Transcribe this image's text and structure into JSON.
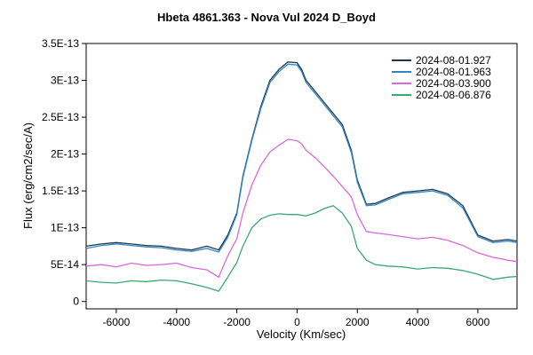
{
  "chart_data": {
    "type": "line",
    "title": "Hbeta 4861.363 - Nova Vul 2024   D_Boyd",
    "xlabel": "Velocity (Km/sec)",
    "ylabel": "Flux (erg/cm2/sec/A)",
    "xlim": [
      -7000,
      7300
    ],
    "ylim": [
      -1e-14,
      3.5e-13
    ],
    "x_ticks": [
      -6000,
      -4000,
      -2000,
      0,
      2000,
      4000,
      6000
    ],
    "x_tick_labels": [
      "-6000",
      "-4000",
      "-2000",
      "0",
      "2000",
      "4000",
      "6000"
    ],
    "y_ticks": [
      0,
      5e-14,
      1e-13,
      1.5e-13,
      2e-13,
      2.5e-13,
      3e-13,
      3.5e-13
    ],
    "y_tick_labels": [
      "0",
      "5E-14",
      "1E-13",
      "1.5E-13",
      "2E-13",
      "2.5E-13",
      "3E-13",
      "3.5E-13"
    ],
    "grid": false,
    "legend_position": "top-right",
    "series": [
      {
        "name": "2024-08-01.927",
        "color": "#1f3a4d",
        "x": [
          -7000,
          -6500,
          -6000,
          -5500,
          -5000,
          -4500,
          -4000,
          -3500,
          -3000,
          -2600,
          -2300,
          -2000,
          -1800,
          -1500,
          -1200,
          -900,
          -600,
          -300,
          0,
          150,
          300,
          600,
          900,
          1200,
          1500,
          1800,
          2000,
          2300,
          2600,
          3000,
          3500,
          4000,
          4500,
          5000,
          5500,
          6000,
          6500,
          7000,
          7300
        ],
        "y": [
          7.5e-14,
          7.8e-14,
          8e-14,
          7.8e-14,
          7.6e-14,
          7.5e-14,
          7.2e-14,
          7e-14,
          7.5e-14,
          7e-14,
          9e-14,
          1.2e-13,
          1.7e-13,
          2.2e-13,
          2.65e-13,
          3e-13,
          3.15e-13,
          3.25e-13,
          3.24e-13,
          3.15e-13,
          3e-13,
          2.85e-13,
          2.7e-13,
          2.55e-13,
          2.4e-13,
          2.05e-13,
          1.65e-13,
          1.32e-13,
          1.33e-13,
          1.4e-13,
          1.48e-13,
          1.5e-13,
          1.52e-13,
          1.46e-13,
          1.3e-13,
          9e-14,
          8.2e-14,
          8.4e-14,
          8.2e-14
        ]
      },
      {
        "name": "2024-08-01.963",
        "color": "#2f86c4",
        "x": [
          -7000,
          -6500,
          -6000,
          -5500,
          -5000,
          -4500,
          -4000,
          -3500,
          -3000,
          -2600,
          -2300,
          -2000,
          -1800,
          -1500,
          -1200,
          -900,
          -600,
          -300,
          0,
          150,
          300,
          600,
          900,
          1200,
          1500,
          1800,
          2000,
          2300,
          2600,
          3000,
          3500,
          4000,
          4500,
          5000,
          5500,
          6000,
          6500,
          7000,
          7300
        ],
        "y": [
          7.2e-14,
          7.6e-14,
          7.8e-14,
          7.6e-14,
          7.4e-14,
          7.3e-14,
          7e-14,
          6.8e-14,
          7.2e-14,
          6.7e-14,
          8.7e-14,
          1.18e-13,
          1.68e-13,
          2.18e-13,
          2.62e-13,
          2.97e-13,
          3.12e-13,
          3.22e-13,
          3.21e-13,
          3.12e-13,
          2.97e-13,
          2.82e-13,
          2.67e-13,
          2.52e-13,
          2.37e-13,
          2.02e-13,
          1.62e-13,
          1.3e-13,
          1.31e-13,
          1.38e-13,
          1.46e-13,
          1.48e-13,
          1.5e-13,
          1.44e-13,
          1.27e-13,
          8.8e-14,
          8e-14,
          8.2e-14,
          8e-14
        ]
      },
      {
        "name": "2024-08-03.900",
        "color": "#d96ad9",
        "x": [
          -7000,
          -6500,
          -6000,
          -5500,
          -5000,
          -4500,
          -4000,
          -3500,
          -3000,
          -2600,
          -2300,
          -2000,
          -1800,
          -1500,
          -1200,
          -900,
          -600,
          -300,
          0,
          150,
          300,
          600,
          900,
          1200,
          1500,
          1800,
          2000,
          2300,
          2600,
          3000,
          3500,
          4000,
          4500,
          5000,
          5500,
          6000,
          6500,
          7000,
          7300
        ],
        "y": [
          4.8e-14,
          5e-14,
          4.7e-14,
          5.2e-14,
          4.9e-14,
          5e-14,
          5.2e-14,
          4.6e-14,
          4.3e-14,
          3.3e-14,
          6.2e-14,
          8.5e-14,
          1.2e-13,
          1.58e-13,
          1.85e-13,
          2.03e-13,
          2.12e-13,
          2.2e-13,
          2.18e-13,
          2.14e-13,
          2.05e-13,
          1.95e-13,
          1.83e-13,
          1.7e-13,
          1.56e-13,
          1.42e-13,
          1.18e-13,
          9.5e-14,
          9.3e-14,
          9.1e-14,
          8.8e-14,
          8.5e-14,
          8.7e-14,
          8.3e-14,
          7.6e-14,
          6.6e-14,
          6e-14,
          5.6e-14,
          5.4e-14
        ]
      },
      {
        "name": "2024-08-06.876",
        "color": "#3aa870",
        "x": [
          -7000,
          -6500,
          -6000,
          -5500,
          -5000,
          -4500,
          -4000,
          -3500,
          -3000,
          -2600,
          -2300,
          -2000,
          -1800,
          -1500,
          -1200,
          -900,
          -600,
          -300,
          0,
          300,
          600,
          900,
          1200,
          1500,
          1800,
          2000,
          2300,
          2600,
          3000,
          3500,
          4000,
          4500,
          5000,
          5500,
          6000,
          6500,
          7000,
          7300
        ],
        "y": [
          2.8e-14,
          2.6e-14,
          2.5e-14,
          2.8e-14,
          2.7e-14,
          2.9e-14,
          2.8e-14,
          2.4e-14,
          1.9e-14,
          1.4e-14,
          3.3e-14,
          5.3e-14,
          7.5e-14,
          1e-13,
          1.12e-13,
          1.17e-13,
          1.19e-13,
          1.18e-13,
          1.18e-13,
          1.16e-13,
          1.2e-13,
          1.26e-13,
          1.3e-13,
          1.2e-13,
          1.02e-13,
          7.2e-14,
          5.6e-14,
          5e-14,
          4.8e-14,
          4.7e-14,
          4.4e-14,
          4.6e-14,
          4.5e-14,
          4.2e-14,
          3.7e-14,
          3e-14,
          3.3e-14,
          3.4e-14
        ]
      }
    ]
  }
}
